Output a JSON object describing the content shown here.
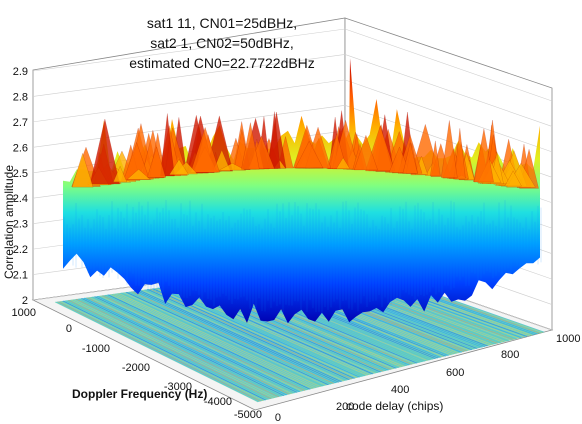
{
  "chart_data": {
    "type": "surface3d",
    "title_lines": [
      "sat1 11, CN01=25dBHz,",
      "sat2 1, CN02=50dBHz,",
      "estimated CN0=22.7722dBHz"
    ],
    "xlabel": "code delay (chips)",
    "ylabel": "Doppler Frequency (Hz)",
    "zlabel": "Correlation amplitude",
    "x_ticks": [
      "0",
      "200",
      "400",
      "600",
      "800",
      "1000"
    ],
    "y_ticks": [
      "1000",
      "0",
      "-1000",
      "-2000",
      "-3000",
      "-4000",
      "-5000"
    ],
    "z_ticks": [
      "2",
      "2.1",
      "2.2",
      "2.3",
      "2.4",
      "2.5",
      "2.6",
      "2.7",
      "2.8",
      "2.9"
    ],
    "xlim": [
      0,
      1000
    ],
    "ylim": [
      -5000,
      1000
    ],
    "zlim": [
      2,
      2.9
    ],
    "grid": true,
    "colormap": "jet",
    "contour_projection_on_floor": true,
    "surface_summary": {
      "noise_floor_min": 2.05,
      "noise_floor_max": 2.85,
      "typical_level": 2.55,
      "max_peak": 2.95
    }
  }
}
